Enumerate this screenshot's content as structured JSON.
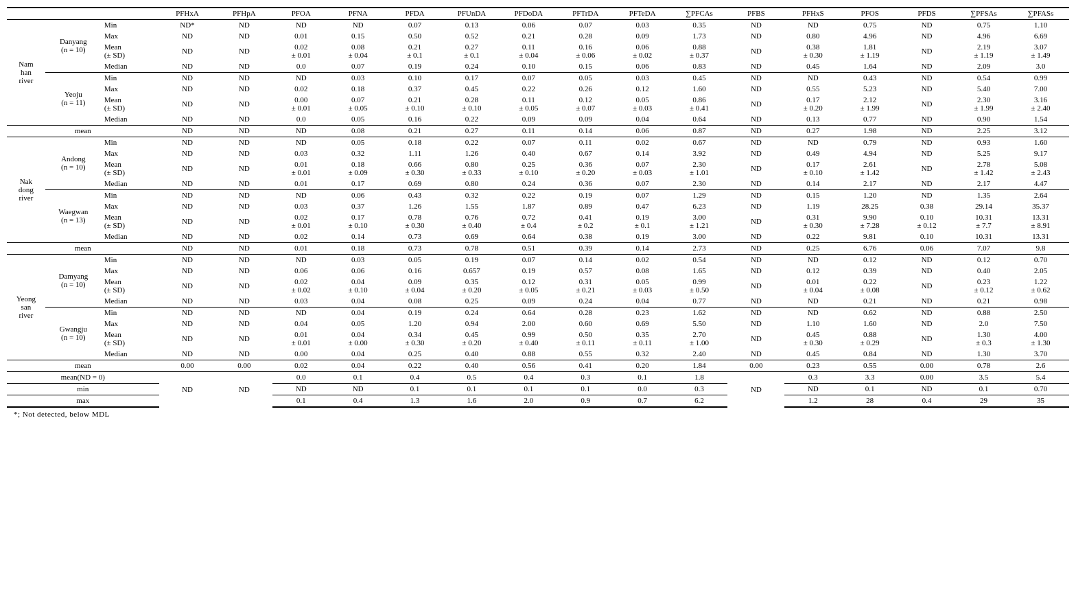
{
  "columns": [
    "PFHxA",
    "PFHpA",
    "PFOA",
    "PFNA",
    "PFDA",
    "PFUnDA",
    "PFDoDA",
    "PFTrDA",
    "PFTeDA",
    "∑PFCAs",
    "PFBS",
    "PFHxS",
    "PFOS",
    "PFDS",
    "∑PFSAs",
    "∑PFASs"
  ],
  "rivers": [
    {
      "name": "Nam han river",
      "sites": [
        {
          "name": "Danyang",
          "n": "(n = 10)",
          "stats": [
            {
              "label": "Min",
              "v": [
                "ND*",
                "ND",
                "ND",
                "ND",
                "0.07",
                "0.13",
                "0.06",
                "0.07",
                "0.03",
                "0.35",
                "ND",
                "ND",
                "0.75",
                "ND",
                "0.75",
                "1.10"
              ]
            },
            {
              "label": "Max",
              "v": [
                "ND",
                "ND",
                "0.01",
                "0.15",
                "0.50",
                "0.52",
                "0.21",
                "0.28",
                "0.09",
                "1.73",
                "ND",
                "0.80",
                "4.96",
                "ND",
                "4.96",
                "6.69"
              ]
            },
            {
              "label": "Mean (± SD)",
              "v": [
                "ND",
                "ND",
                "0.02 ± 0.01",
                "0.08 ± 0.04",
                "0.21 ± 0.1",
                "0.27 ± 0.1",
                "0.11 ± 0.04",
                "0.16 ± 0.06",
                "0.06 ± 0.02",
                "0.88 ± 0.37",
                "ND",
                "0.38 ± 0.30",
                "1.81 ± 1.19",
                "ND",
                "2.19 ± 1.19",
                "3.07 ± 1.49"
              ]
            },
            {
              "label": "Median",
              "v": [
                "ND",
                "ND",
                "0.0",
                "0.07",
                "0.19",
                "0.24",
                "0.10",
                "0.15",
                "0.06",
                "0.83",
                "ND",
                "0.45",
                "1.64",
                "ND",
                "2.09",
                "3.0"
              ]
            }
          ]
        },
        {
          "name": "Yeoju",
          "n": "(n = 11)",
          "stats": [
            {
              "label": "Min",
              "v": [
                "ND",
                "ND",
                "ND",
                "0.03",
                "0.10",
                "0.17",
                "0.07",
                "0.05",
                "0.03",
                "0.45",
                "ND",
                "ND",
                "0.43",
                "ND",
                "0.54",
                "0.99"
              ]
            },
            {
              "label": "Max",
              "v": [
                "ND",
                "ND",
                "0.02",
                "0.18",
                "0.37",
                "0.45",
                "0.22",
                "0.26",
                "0.12",
                "1.60",
                "ND",
                "0.55",
                "5.23",
                "ND",
                "5.40",
                "7.00"
              ]
            },
            {
              "label": "Mean (± SD)",
              "v": [
                "ND",
                "ND",
                "0.00 ± 0.01",
                "0.07 ± 0.05",
                "0.21 ± 0.10",
                "0.28 ± 0.10",
                "0.11 ± 0.05",
                "0.12 ± 0.07",
                "0.05 ± 0.03",
                "0.86 ± 0.41",
                "ND",
                "0.17 ± 0.20",
                "2.12 ± 1.99",
                "ND",
                "2.30 ± 1.99",
                "3.16 ± 2.40"
              ]
            },
            {
              "label": "Median",
              "v": [
                "ND",
                "ND",
                "0.0",
                "0.05",
                "0.16",
                "0.22",
                "0.09",
                "0.09",
                "0.04",
                "0.64",
                "ND",
                "0.13",
                "0.77",
                "ND",
                "0.90",
                "1.54"
              ]
            }
          ]
        }
      ],
      "mean": [
        "ND",
        "ND",
        "ND",
        "0.08",
        "0.21",
        "0.27",
        "0.11",
        "0.14",
        "0.06",
        "0.87",
        "ND",
        "0.27",
        "1.98",
        "ND",
        "2.25",
        "3.12"
      ]
    },
    {
      "name": "Nak dong river",
      "sites": [
        {
          "name": "Andong",
          "n": "(n = 10)",
          "stats": [
            {
              "label": "Min",
              "v": [
                "ND",
                "ND",
                "ND",
                "0.05",
                "0.18",
                "0.22",
                "0.07",
                "0.11",
                "0.02",
                "0.67",
                "ND",
                "ND",
                "0.79",
                "ND",
                "0.93",
                "1.60"
              ]
            },
            {
              "label": "Max",
              "v": [
                "ND",
                "ND",
                "0.03",
                "0.32",
                "1.11",
                "1.26",
                "0.40",
                "0.67",
                "0.14",
                "3.92",
                "ND",
                "0.49",
                "4.94",
                "ND",
                "5.25",
                "9.17"
              ]
            },
            {
              "label": "Mean (± SD)",
              "v": [
                "ND",
                "ND",
                "0.01 ± 0.01",
                "0.18 ± 0.09",
                "0.66 ± 0.30",
                "0.80 ± 0.33",
                "0.25 ± 0.10",
                "0.36 ± 0.20",
                "0.07 ± 0.03",
                "2.30 ± 1.01",
                "ND",
                "0.17 ± 0.10",
                "2.61 ± 1.42",
                "ND",
                "2.78 ± 1.42",
                "5.08 ± 2.43"
              ]
            },
            {
              "label": "Median",
              "v": [
                "ND",
                "ND",
                "0.01",
                "0.17",
                "0.69",
                "0.80",
                "0.24",
                "0.36",
                "0.07",
                "2.30",
                "ND",
                "0.14",
                "2.17",
                "ND",
                "2.17",
                "4.47"
              ]
            }
          ]
        },
        {
          "name": "Waegwan",
          "n": "(n = 13)",
          "stats": [
            {
              "label": "Min",
              "v": [
                "ND",
                "ND",
                "ND",
                "0.06",
                "0.43",
                "0.32",
                "0.22",
                "0.19",
                "0.07",
                "1.29",
                "ND",
                "0.15",
                "1.20",
                "ND",
                "1.35",
                "2.64"
              ]
            },
            {
              "label": "Max",
              "v": [
                "ND",
                "ND",
                "0.03",
                "0.37",
                "1.26",
                "1.55",
                "1.87",
                "0.89",
                "0.47",
                "6.23",
                "ND",
                "1.19",
                "28.25",
                "0.38",
                "29.14",
                "35.37"
              ]
            },
            {
              "label": "Mean (± SD)",
              "v": [
                "ND",
                "ND",
                "0.02 ± 0.01",
                "0.17 ± 0.10",
                "0.78 ± 0.30",
                "0.76 ± 0.40",
                "0.72 ± 0.4",
                "0.41 ± 0.2",
                "0.19 ± 0.1",
                "3.00 ± 1.21",
                "ND",
                "0.31 ± 0.30",
                "9.90 ± 7.28",
                "0.10 ± 0.12",
                "10.31 ± 7.7",
                "13.31 ± 8.91"
              ]
            },
            {
              "label": "Median",
              "v": [
                "ND",
                "ND",
                "0.02",
                "0.14",
                "0.73",
                "0.69",
                "0.64",
                "0.38",
                "0.19",
                "3.00",
                "ND",
                "0.22",
                "9.81",
                "0.10",
                "10.31",
                "13.31"
              ]
            }
          ]
        }
      ],
      "mean": [
        "ND",
        "ND",
        "0.01",
        "0.18",
        "0.73",
        "0.78",
        "0.51",
        "0.39",
        "0.14",
        "2.73",
        "ND",
        "0.25",
        "6.76",
        "0.06",
        "7.07",
        "9.8"
      ]
    },
    {
      "name": "Yeong san river",
      "sites": [
        {
          "name": "Damyang",
          "n": "(n = 10)",
          "stats": [
            {
              "label": "Min",
              "v": [
                "ND",
                "ND",
                "ND",
                "0.03",
                "0.05",
                "0.19",
                "0.07",
                "0.14",
                "0.02",
                "0.54",
                "ND",
                "ND",
                "0.12",
                "ND",
                "0.12",
                "0.70"
              ]
            },
            {
              "label": "Max",
              "v": [
                "ND",
                "ND",
                "0.06",
                "0.06",
                "0.16",
                "0.657",
                "0.19",
                "0.57",
                "0.08",
                "1.65",
                "ND",
                "0.12",
                "0.39",
                "ND",
                "0.40",
                "2.05"
              ]
            },
            {
              "label": "Mean (± SD)",
              "v": [
                "ND",
                "ND",
                "0.02 ± 0.02",
                "0.04 ± 0.10",
                "0.09 ± 0.04",
                "0.35 ± 0.20",
                "0.12 ± 0.05",
                "0.31 ± 0.21",
                "0.05 ± 0.03",
                "0.99 ± 0.50",
                "ND",
                "0.01 ± 0.04",
                "0.22 ± 0.08",
                "ND",
                "0.23 ± 0.12",
                "1.22 ± 0.62"
              ]
            },
            {
              "label": "Median",
              "v": [
                "ND",
                "ND",
                "0.03",
                "0.04",
                "0.08",
                "0.25",
                "0.09",
                "0.24",
                "0.04",
                "0.77",
                "ND",
                "ND",
                "0.21",
                "ND",
                "0.21",
                "0.98"
              ]
            }
          ]
        },
        {
          "name": "Gwangju",
          "n": "(n = 10)",
          "stats": [
            {
              "label": "Min",
              "v": [
                "ND",
                "ND",
                "ND",
                "0.04",
                "0.19",
                "0.24",
                "0.64",
                "0.28",
                "0.23",
                "1.62",
                "ND",
                "ND",
                "0.62",
                "ND",
                "0.88",
                "2.50"
              ]
            },
            {
              "label": "Max",
              "v": [
                "ND",
                "ND",
                "0.04",
                "0.05",
                "1.20",
                "0.94",
                "2.00",
                "0.60",
                "0.69",
                "5.50",
                "ND",
                "1.10",
                "1.60",
                "ND",
                "2.0",
                "7.50"
              ]
            },
            {
              "label": "Mean (± SD)",
              "v": [
                "ND",
                "ND",
                "0.01 ± 0.01",
                "0.04 ± 0.00",
                "0.34 ± 0.30",
                "0.45 ± 0.20",
                "0.99 ± 0.40",
                "0.50 ± 0.11",
                "0.35 ± 0.11",
                "2.70 ± 1.00",
                "ND",
                "0.45 ± 0.30",
                "0.88 ± 0.29",
                "ND",
                "1.30 ± 0.3",
                "4.00 ± 1.30"
              ]
            },
            {
              "label": "Median",
              "v": [
                "ND",
                "ND",
                "0.00",
                "0.04",
                "0.25",
                "0.40",
                "0.88",
                "0.55",
                "0.32",
                "2.40",
                "ND",
                "0.45",
                "0.84",
                "ND",
                "1.30",
                "3.70"
              ]
            }
          ]
        }
      ],
      "mean": [
        "0.00",
        "0.00",
        "0.02",
        "0.04",
        "0.22",
        "0.40",
        "0.56",
        "0.41",
        "0.20",
        "1.84",
        "0.00",
        "0.23",
        "0.55",
        "0.00",
        "0.78",
        "2.6"
      ]
    }
  ],
  "summary": {
    "mean_nd0": {
      "label": "mean(ND = 0)",
      "pfhxa": "",
      "pfhpa": "",
      "v": [
        "0.0",
        "0.1",
        "0.4",
        "0.5",
        "0.4",
        "0.3",
        "0.1",
        "1.8"
      ],
      "pfbs": "",
      "rest": [
        "0.3",
        "3.3",
        "0.00",
        "3.5",
        "5.4"
      ]
    },
    "min": {
      "label": "min",
      "v": [
        "ND",
        "ND",
        "0.1",
        "0.1",
        "0.1",
        "0.1",
        "0.0",
        "0.3"
      ],
      "rest": [
        "ND",
        "0.1",
        "ND",
        "0.1",
        "0.70"
      ]
    },
    "max": {
      "label": "max",
      "v": [
        "0.1",
        "0.4",
        "1.3",
        "1.6",
        "2.0",
        "0.9",
        "0.7",
        "6.2"
      ],
      "rest": [
        "1.2",
        "28",
        "0.4",
        "29",
        "35"
      ]
    },
    "nd_left": "ND",
    "nd_mid": "ND"
  },
  "footnote": "*;  Not detected, below MDL",
  "mean_label": "mean"
}
